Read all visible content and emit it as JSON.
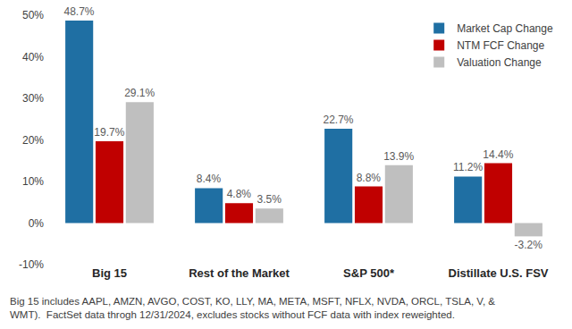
{
  "chart_data": {
    "type": "bar",
    "categories": [
      "Big 15",
      "Rest of the Market",
      "S&P 500*",
      "Distillate U.S. FSV"
    ],
    "series": [
      {
        "name": "Market Cap Change",
        "color": "#1f6fa3",
        "values": [
          48.7,
          8.4,
          22.7,
          11.2
        ],
        "value_labels": [
          "48.7%",
          "8.4%",
          "22.7%",
          "11.2%"
        ]
      },
      {
        "name": "NTM FCF Change",
        "color": "#c00000",
        "values": [
          19.7,
          4.8,
          8.8,
          14.4
        ],
        "value_labels": [
          "19.7%",
          "4.8%",
          "8.8%",
          "14.4%"
        ]
      },
      {
        "name": "Valuation Change",
        "color": "#bfbfbf",
        "values": [
          29.1,
          3.5,
          13.9,
          -3.2
        ],
        "value_labels": [
          "29.1%",
          "3.5%",
          "13.9%",
          "-3.2%"
        ]
      }
    ],
    "ylim": [
      -10,
      50
    ],
    "yticks": [
      {
        "value": -10,
        "label": "-10%"
      },
      {
        "value": 0,
        "label": "0%"
      },
      {
        "value": 10,
        "label": "10%"
      },
      {
        "value": 20,
        "label": "20%"
      },
      {
        "value": 30,
        "label": "30%"
      },
      {
        "value": 40,
        "label": "40%"
      },
      {
        "value": 50,
        "label": "50%"
      }
    ],
    "grid": false,
    "legend": "upper right",
    "data_labels": true,
    "footnote": [
      "Big 15 includes AAPL, AMZN, AVGO, COST, KO, LLY, MA, META, MSFT, NFLX, NVDA, ORCL, TSLA, V, &",
      "WMT).  FactSet data throgh 12/31/2024, excludes stocks without FCF data with index reweighted."
    ]
  }
}
